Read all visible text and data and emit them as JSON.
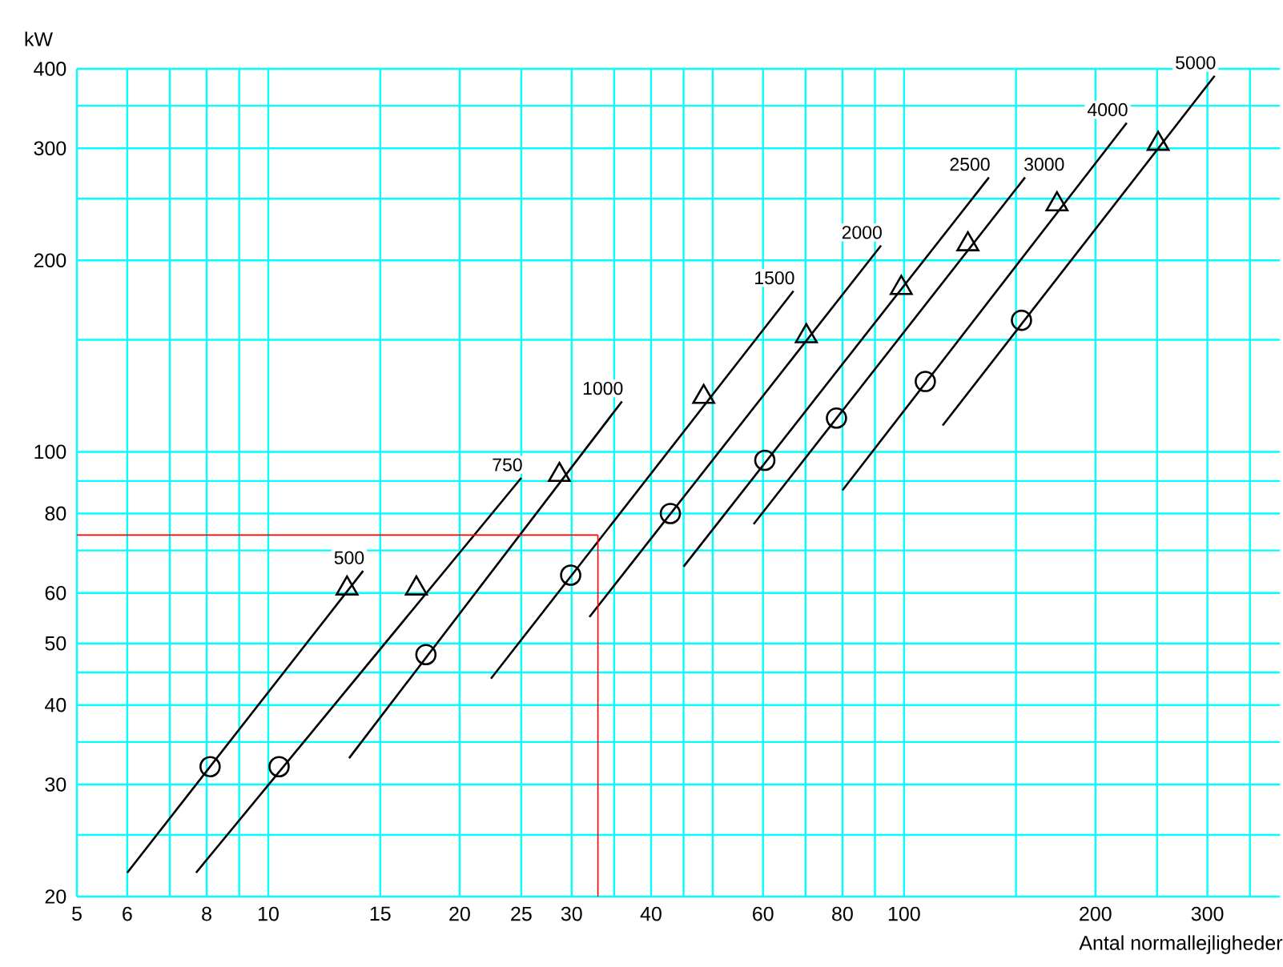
{
  "chart_data": {
    "type": "line",
    "xlabel": "Antal normallejligheder",
    "ylabel": "kW",
    "log": "xy",
    "grid": true,
    "xlim": [
      5,
      390
    ],
    "ylim": [
      20,
      400
    ],
    "xticks": [
      5,
      6,
      {
        "value": 7,
        "label": null
      },
      8,
      {
        "value": 9,
        "label": null
      },
      10,
      15,
      20,
      25,
      30,
      {
        "value": 35,
        "label": null
      },
      40,
      {
        "value": 45,
        "label": null
      },
      {
        "value": 50,
        "label": null
      },
      60,
      {
        "value": 70,
        "label": null
      },
      80,
      {
        "value": 90,
        "label": null
      },
      100,
      {
        "value": 150,
        "label": null
      },
      200,
      {
        "value": 250,
        "label": null
      },
      300,
      {
        "value": 350,
        "label": null
      }
    ],
    "yticks": [
      20,
      {
        "value": 25,
        "label": null
      },
      30,
      {
        "value": 35,
        "label": null
      },
      40,
      {
        "value": 45,
        "label": null
      },
      50,
      60,
      {
        "value": 70,
        "label": null
      },
      80,
      {
        "value": 90,
        "label": null
      },
      100,
      {
        "value": 150,
        "label": null
      },
      200,
      {
        "value": 250,
        "label": null
      },
      300,
      {
        "value": 350,
        "label": null
      },
      400
    ],
    "ref_lines": [
      {
        "axis": "y",
        "value": 74,
        "color": "#ff0000"
      },
      {
        "axis": "x",
        "value": 33,
        "color": "#ff0000"
      }
    ],
    "series": [
      {
        "name": "500",
        "type": "line",
        "color": "#000000",
        "x": [
          6.0,
          14.1
        ],
        "values": [
          21.8,
          65
        ]
      },
      {
        "name": "750",
        "type": "line",
        "color": "#000000",
        "x": [
          7.7,
          25
        ],
        "values": [
          21.8,
          91
        ]
      },
      {
        "name": "1000",
        "type": "line",
        "color": "#000000",
        "x": [
          13.4,
          36
        ],
        "values": [
          33,
          120
        ]
      },
      {
        "name": "1500",
        "type": "line",
        "color": "#000000",
        "x": [
          22.4,
          67
        ],
        "values": [
          44,
          179
        ]
      },
      {
        "name": "2000",
        "type": "line",
        "color": "#000000",
        "x": [
          32,
          92
        ],
        "values": [
          55,
          211
        ]
      },
      {
        "name": "2500",
        "type": "line",
        "color": "#000000",
        "x": [
          45,
          136
        ],
        "values": [
          66,
          270
        ]
      },
      {
        "name": "3000",
        "type": "line",
        "color": "#000000",
        "x": [
          58,
          155
        ],
        "values": [
          77,
          270
        ]
      },
      {
        "name": "4000",
        "type": "line",
        "color": "#000000",
        "x": [
          80,
          224
        ],
        "values": [
          87,
          329
        ]
      },
      {
        "name": "5000",
        "type": "line",
        "color": "#000000",
        "x": [
          115,
          308
        ],
        "values": [
          110,
          390
        ]
      },
      {
        "type": "scatter",
        "marker": "circle",
        "color": "#000000",
        "x": [
          8.1,
          10.4,
          17.7,
          29.9,
          42.9,
          60.4,
          78.3,
          108,
          153
        ],
        "values": [
          32,
          32,
          48,
          64,
          80,
          97,
          113,
          129,
          161
        ]
      },
      {
        "type": "scatter",
        "marker": "triangle",
        "color": "#000000",
        "x": [
          13.3,
          17.1,
          28.7,
          48.4,
          70.2,
          99,
          126,
          174,
          251
        ],
        "values": [
          61,
          61,
          92,
          122,
          152,
          181,
          212,
          245,
          305
        ]
      }
    ]
  }
}
